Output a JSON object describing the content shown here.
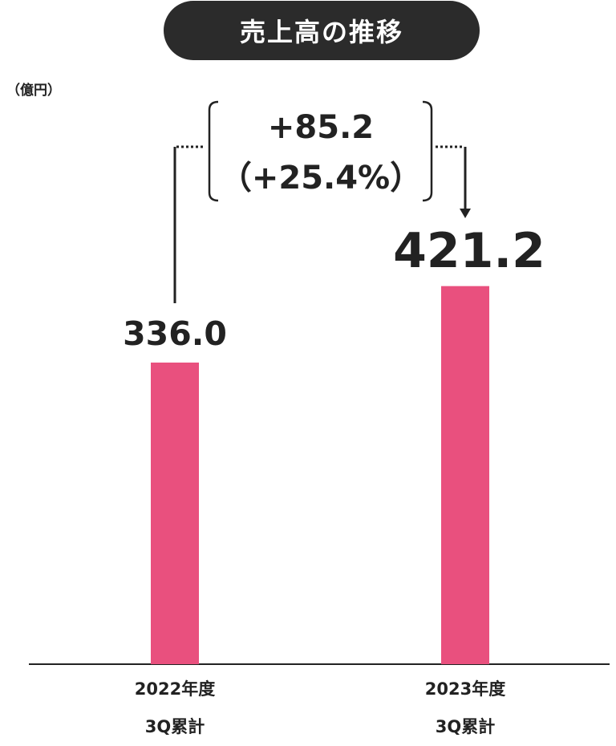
{
  "header": {
    "title": "売上高の推移"
  },
  "unit_label": "（億円）",
  "change": {
    "absolute": "+85.2",
    "percent": "（+25.4%）"
  },
  "chart_data": {
    "type": "bar",
    "title": "売上高の推移",
    "ylabel": "（億円）",
    "categories": [
      {
        "line1": "2022年度",
        "line2": "3Q累計"
      },
      {
        "line1": "2023年度",
        "line2": "3Q累計"
      }
    ],
    "values": [
      336.0,
      421.2
    ],
    "data_labels": [
      "336.0",
      "421.2"
    ],
    "bar_color": "#e9507e",
    "grid": false
  }
}
